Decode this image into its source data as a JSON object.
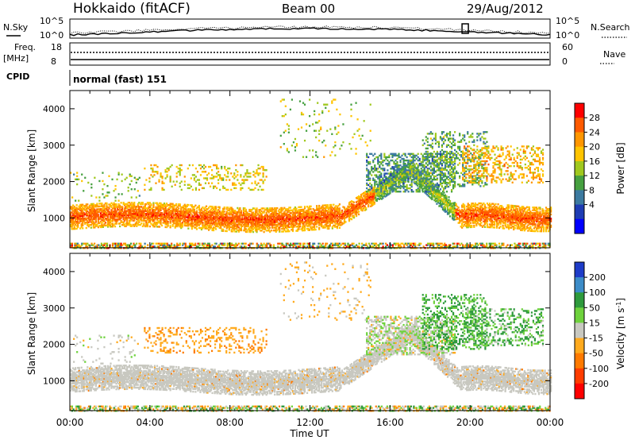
{
  "header": {
    "station": "Hokkaido (fitACF)",
    "beam": "Beam 00",
    "date": "29/Aug/2012"
  },
  "top_panels": {
    "nsky_label": "N.Sky",
    "nsky_ticks": [
      "10^5",
      "10^0"
    ],
    "nsearch_label": "N.Search",
    "nsearch_ticks": [
      "10^5",
      "10^0"
    ],
    "freq_label_1": "Freq.",
    "freq_label_2": "[MHz]",
    "freq_ticks": [
      "18",
      "8"
    ],
    "nave_label": "Nave",
    "nave_ticks": [
      "60",
      "0"
    ],
    "cpid_label": "CPID",
    "cpid_value": "normal (fast) 151"
  },
  "chart_data": [
    {
      "type": "heatmap",
      "title": "",
      "xlabel": "",
      "ylabel": "Slant Range [km]",
      "x_ticks": [
        "00:00",
        "04:00",
        "08:00",
        "12:00",
        "16:00",
        "20:00",
        "00:00"
      ],
      "y_ticks": [
        1000,
        2000,
        3000,
        4000
      ],
      "xlim_hours": [
        0,
        24
      ],
      "ylim_km": [
        180,
        4500
      ],
      "colorbar": {
        "label": "Power [dB]",
        "ticks": [
          "28",
          "24",
          "20",
          "16",
          "12",
          "8",
          "4"
        ],
        "colors": [
          "#ff0000",
          "#ff5a00",
          "#ff9600",
          "#ffc400",
          "#a0c81e",
          "#46a040",
          "#3c7aa0",
          "#1e3cb4",
          "#0000ff"
        ]
      },
      "regions": [
        {
          "t": [
            0,
            24
          ],
          "r": [
            180,
            300
          ],
          "level": "mixed"
        },
        {
          "t": [
            0,
            13.5
          ],
          "r": [
            700,
            1500
          ],
          "level": 26
        },
        {
          "t": [
            13.5,
            16.8
          ],
          "r": [
            1200,
            2600
          ],
          "level": 22
        },
        {
          "t": [
            15,
            19.5
          ],
          "r": [
            1700,
            2800
          ],
          "level": 10
        },
        {
          "t": [
            19.5,
            24
          ],
          "r": [
            800,
            1700
          ],
          "level": 26
        },
        {
          "t": [
            3.5,
            10
          ],
          "r": [
            1800,
            2500
          ],
          "level": 18
        },
        {
          "t": [
            19.5,
            23.5
          ],
          "r": [
            2000,
            3000
          ],
          "level": 20
        }
      ]
    },
    {
      "type": "heatmap",
      "title": "",
      "xlabel": "Time UT",
      "ylabel": "Slant Range [km]",
      "x_ticks": [
        "00:00",
        "04:00",
        "08:00",
        "12:00",
        "16:00",
        "20:00",
        "00:00"
      ],
      "y_ticks": [
        1000,
        2000,
        3000,
        4000
      ],
      "xlim_hours": [
        0,
        24
      ],
      "ylim_km": [
        180,
        4500
      ],
      "colorbar": {
        "label": "Velocity [m s^-1]",
        "ticks": [
          "200",
          "100",
          "50",
          "15",
          "-15",
          "-50",
          "-100",
          "-200"
        ],
        "colors": [
          "#1e3cc8",
          "#3c8cc8",
          "#2e9a3c",
          "#6ed23c",
          "#c8c8c0",
          "#ffaa1e",
          "#ff7a00",
          "#ff3c00",
          "#ff0000"
        ]
      },
      "regions": [
        {
          "t": [
            0,
            13.5
          ],
          "r": [
            700,
            1500
          ],
          "velocity": 0
        },
        {
          "t": [
            13.5,
            19
          ],
          "r": [
            1200,
            2700
          ],
          "velocity": 0
        },
        {
          "t": [
            19,
            24
          ],
          "r": [
            800,
            1700
          ],
          "velocity": 0
        },
        {
          "t": [
            17.5,
            20.5
          ],
          "r": [
            1800,
            3300
          ],
          "velocity": 40
        },
        {
          "t": [
            3.5,
            10
          ],
          "r": [
            1800,
            2500
          ],
          "velocity": -40
        }
      ]
    }
  ]
}
